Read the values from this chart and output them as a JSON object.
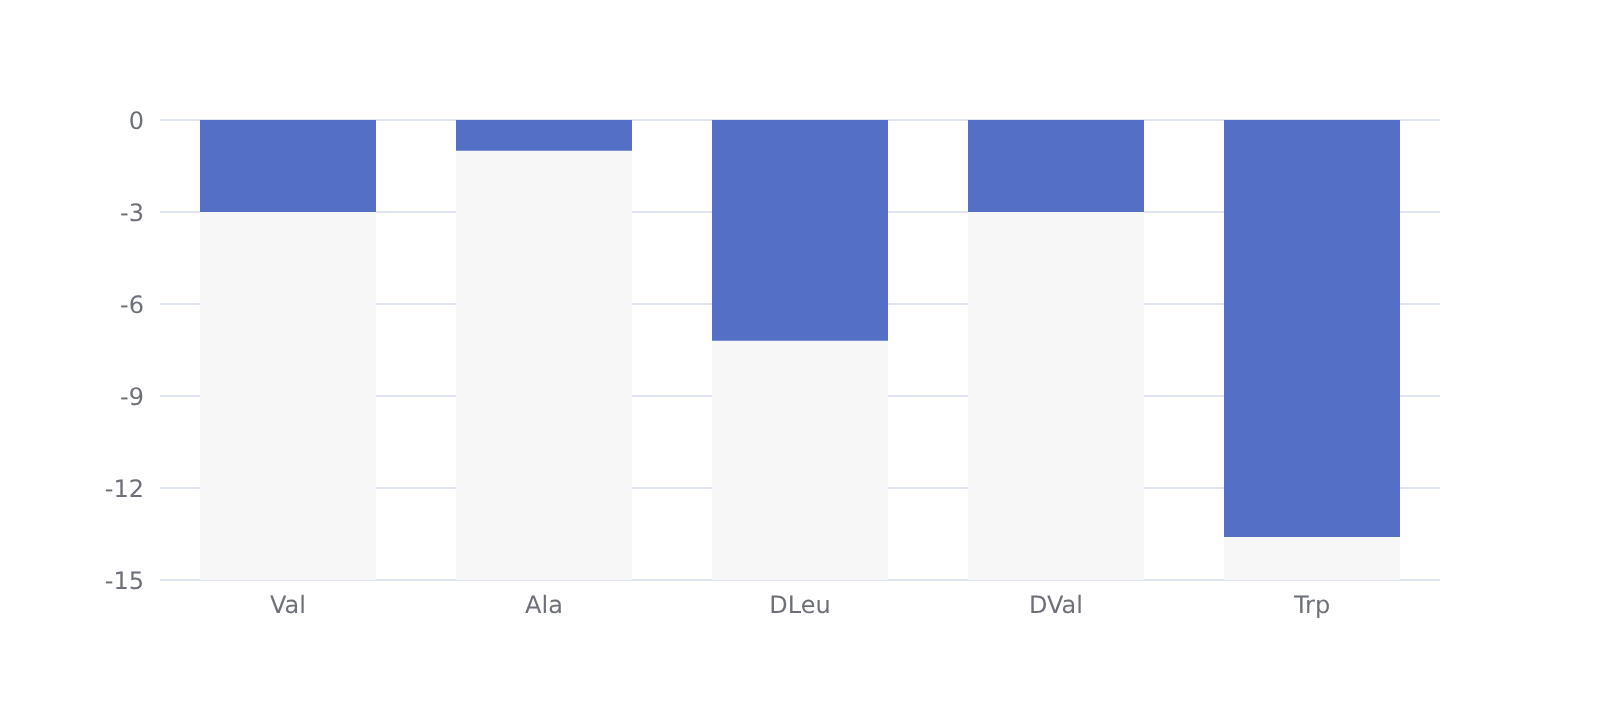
{
  "chart_data": {
    "type": "bar",
    "categories": [
      "Val",
      "Ala",
      "DLeu",
      "DVal",
      "Trp"
    ],
    "values": [
      -3,
      -1,
      -7.2,
      -3,
      -13.6
    ],
    "color": "#5470c6",
    "ylim": [
      -15,
      0
    ],
    "yticks": [
      -15,
      -12,
      -9,
      -6,
      -3,
      0
    ],
    "grid": "y"
  }
}
